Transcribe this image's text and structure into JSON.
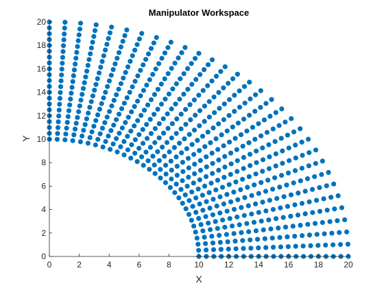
{
  "chart_data": {
    "type": "scatter",
    "title": "Manipulator Workspace",
    "xlabel": "X",
    "ylabel": "Y",
    "xlim": [
      0,
      20
    ],
    "ylim": [
      0,
      20
    ],
    "xticks": [
      "0",
      "2",
      "4",
      "6",
      "8",
      "10",
      "12",
      "14",
      "16",
      "18",
      "20"
    ],
    "yticks": [
      "0",
      "2",
      "4",
      "6",
      "8",
      "10",
      "12",
      "14",
      "16",
      "18",
      "20"
    ],
    "grid": false,
    "legend": "none",
    "marker_color": "#0072BD",
    "series": [
      {
        "shape": "quarter-annulus",
        "inner_radius": 10,
        "outer_radius": 20,
        "angle_range_deg": [
          0,
          90
        ],
        "radial_lines": 31,
        "points_per_line": 21
      }
    ]
  }
}
